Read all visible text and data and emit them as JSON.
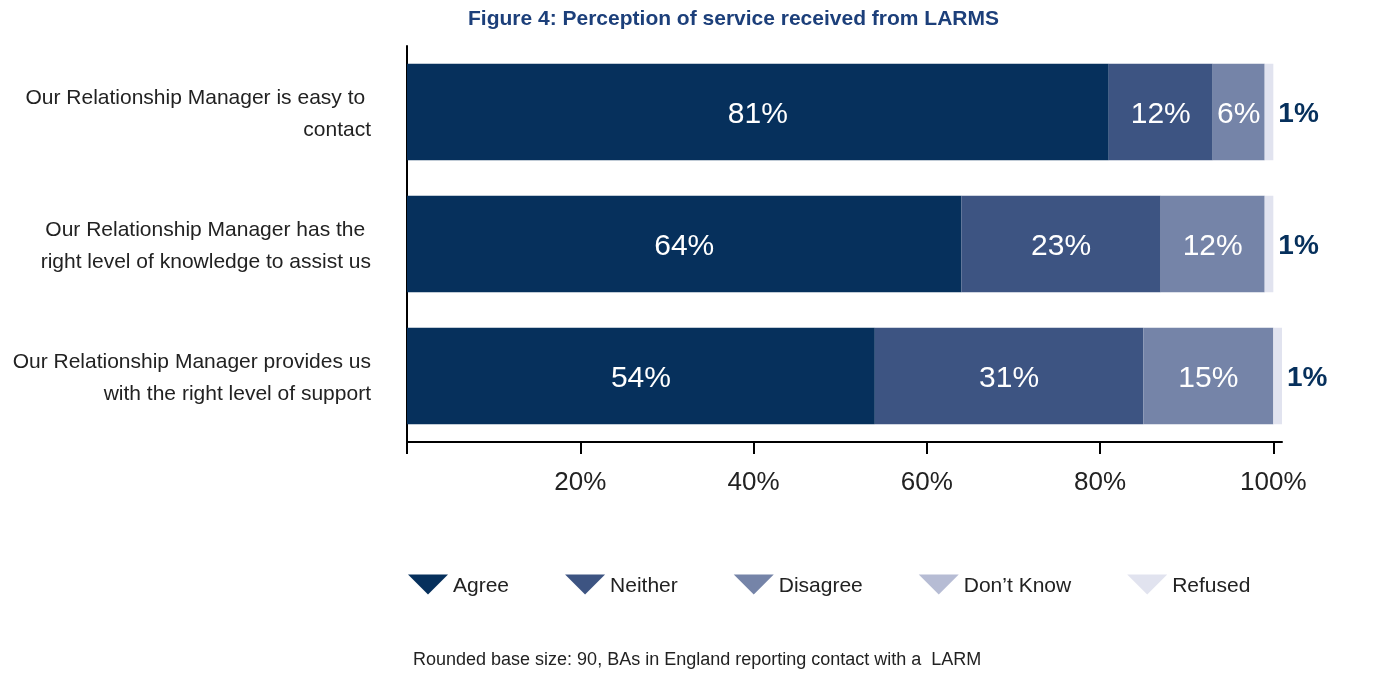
{
  "chart_data": {
    "type": "bar",
    "orientation": "horizontal",
    "stacked": true,
    "title": "Figure 4: Perception of service received from LARMS",
    "categories": [
      "Our Relationship Manager is easy to contact",
      "Our Relationship Manager has the right level of knowledge to assist us",
      "Our Relationship Manager provides us with the right level of support"
    ],
    "series": [
      {
        "name": "Agree",
        "color": "#06305c",
        "values": [
          81,
          64,
          54
        ],
        "value_labels": [
          "81%",
          "64%",
          "54%"
        ]
      },
      {
        "name": "Neither",
        "color": "#3d5482",
        "values": [
          12,
          23,
          31
        ],
        "value_labels": [
          "12%",
          "23%",
          "31%"
        ]
      },
      {
        "name": "Disagree",
        "color": "#7584a8",
        "values": [
          6,
          12,
          15
        ],
        "value_labels": [
          "6%",
          "12%",
          "15%"
        ]
      },
      {
        "name": "Don’t Know",
        "color": "#b6bcd4",
        "values": [
          null,
          null,
          null
        ]
      },
      {
        "name": "Refused",
        "color": "#e1e3ef",
        "values": [
          1,
          1,
          1
        ],
        "value_labels": [
          "1%",
          "1%",
          "1%"
        ]
      }
    ],
    "xlim": [
      0,
      101
    ],
    "xticks": [
      {
        "value": 0,
        "label": null
      },
      {
        "value": 20,
        "label": "20%"
      },
      {
        "value": 40,
        "label": "40%"
      },
      {
        "value": 60,
        "label": "60%"
      },
      {
        "value": 80,
        "label": "80%"
      },
      {
        "value": 100,
        "label": "100%"
      }
    ],
    "grid": false,
    "legend": "bottom",
    "annotations": [
      "Rounded base size: 90, BAs in England reporting contact with a  LARM"
    ]
  }
}
